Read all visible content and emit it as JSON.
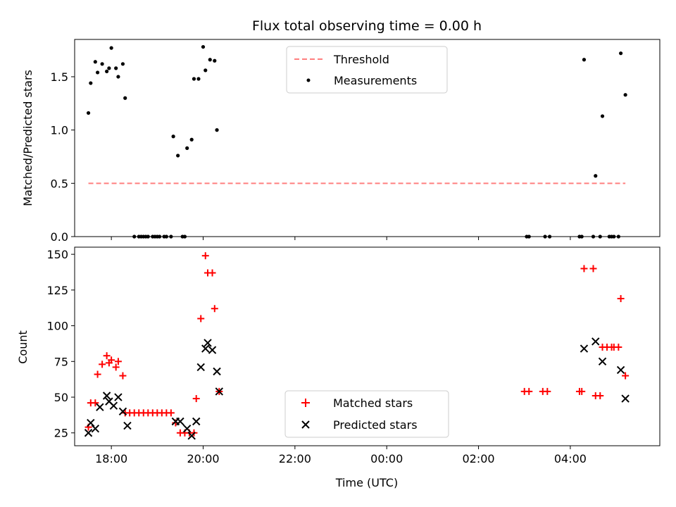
{
  "chart_data": {
    "title": "Flux total observing time = 0.00 h",
    "xlabel": "Time (UTC)",
    "x_unit": "hours since 00:00 UTC",
    "xlim": [
      -6.8,
      5.95
    ],
    "xticks": [
      {
        "value": -6,
        "label": "18:00"
      },
      {
        "value": -4,
        "label": "20:00"
      },
      {
        "value": -2,
        "label": "22:00"
      },
      {
        "value": 0,
        "label": "00:00"
      },
      {
        "value": 2,
        "label": "02:00"
      },
      {
        "value": 4,
        "label": "04:00"
      }
    ],
    "top": {
      "type": "scatter",
      "ylabel": "Matched/Predicted stars",
      "ylim": [
        0,
        1.85
      ],
      "yticks": [
        {
          "value": 0,
          "label": "0.0"
        },
        {
          "value": 0.5,
          "label": "0.5"
        },
        {
          "value": 1.0,
          "label": "1.0"
        },
        {
          "value": 1.5,
          "label": "1.5"
        }
      ],
      "legend": {
        "position": "upper-center",
        "entries": [
          {
            "name": "Threshold",
            "style": "dashed-line",
            "color": "#ff7f7f"
          },
          {
            "name": "Measurements",
            "style": "dot",
            "color": "#000000"
          }
        ]
      },
      "threshold": {
        "name": "Threshold",
        "x": [
          -6.5,
          5.2
        ],
        "y": 0.5,
        "color": "#ff7f7f"
      },
      "measurements": {
        "name": "Measurements",
        "color": "#000000",
        "points": [
          [
            -6.5,
            1.16
          ],
          [
            -6.45,
            1.44
          ],
          [
            -6.35,
            1.64
          ],
          [
            -6.3,
            1.54
          ],
          [
            -6.2,
            1.62
          ],
          [
            -6.1,
            1.55
          ],
          [
            -6.05,
            1.58
          ],
          [
            -6.0,
            1.77
          ],
          [
            -5.9,
            1.58
          ],
          [
            -5.85,
            1.5
          ],
          [
            -5.75,
            1.62
          ],
          [
            -5.7,
            1.3
          ],
          [
            -5.5,
            0
          ],
          [
            -5.4,
            0
          ],
          [
            -5.35,
            0
          ],
          [
            -5.3,
            0
          ],
          [
            -5.25,
            0
          ],
          [
            -5.2,
            0
          ],
          [
            -5.1,
            0
          ],
          [
            -5.05,
            0
          ],
          [
            -5.0,
            0
          ],
          [
            -4.95,
            0
          ],
          [
            -4.85,
            0
          ],
          [
            -4.8,
            0
          ],
          [
            -4.7,
            0
          ],
          [
            -4.65,
            0.94
          ],
          [
            -4.55,
            0.76
          ],
          [
            -4.45,
            0
          ],
          [
            -4.4,
            0
          ],
          [
            -4.35,
            0.83
          ],
          [
            -4.25,
            0.91
          ],
          [
            -4.2,
            1.48
          ],
          [
            -4.1,
            1.48
          ],
          [
            -4.0,
            1.78
          ],
          [
            -3.95,
            1.56
          ],
          [
            -3.85,
            1.66
          ],
          [
            -3.75,
            1.65
          ],
          [
            -3.7,
            1.0
          ],
          [
            3.05,
            0
          ],
          [
            3.1,
            0
          ],
          [
            3.45,
            0
          ],
          [
            3.55,
            0
          ],
          [
            4.2,
            0
          ],
          [
            4.25,
            0
          ],
          [
            4.3,
            1.66
          ],
          [
            4.5,
            0
          ],
          [
            4.55,
            0.57
          ],
          [
            4.65,
            0
          ],
          [
            4.7,
            1.13
          ],
          [
            4.85,
            0
          ],
          [
            4.9,
            0
          ],
          [
            4.95,
            0
          ],
          [
            5.05,
            0
          ],
          [
            5.1,
            1.72
          ],
          [
            5.2,
            1.33
          ]
        ]
      }
    },
    "bottom": {
      "type": "scatter",
      "ylabel": "Count",
      "ylim": [
        16,
        155
      ],
      "yticks": [
        {
          "value": 25,
          "label": "25"
        },
        {
          "value": 50,
          "label": "50"
        },
        {
          "value": 75,
          "label": "75"
        },
        {
          "value": 100,
          "label": "100"
        },
        {
          "value": 125,
          "label": "125"
        },
        {
          "value": 150,
          "label": "150"
        }
      ],
      "legend": {
        "position": "lower-center",
        "entries": [
          {
            "name": "Matched stars",
            "style": "plus",
            "color": "#ff0000"
          },
          {
            "name": "Predicted stars",
            "style": "x",
            "color": "#000000"
          }
        ]
      },
      "series": [
        {
          "name": "Matched stars",
          "marker": "plus",
          "color": "#ff0000",
          "points": [
            [
              -6.5,
              29
            ],
            [
              -6.45,
              46
            ],
            [
              -6.35,
              46
            ],
            [
              -6.3,
              66
            ],
            [
              -6.2,
              73
            ],
            [
              -6.1,
              79
            ],
            [
              -6.05,
              74
            ],
            [
              -6.0,
              76
            ],
            [
              -5.9,
              71
            ],
            [
              -5.85,
              75
            ],
            [
              -5.75,
              65
            ],
            [
              -5.7,
              39
            ],
            [
              -5.6,
              39
            ],
            [
              -5.5,
              39
            ],
            [
              -5.4,
              39
            ],
            [
              -5.3,
              39
            ],
            [
              -5.2,
              39
            ],
            [
              -5.1,
              39
            ],
            [
              -5.0,
              39
            ],
            [
              -4.9,
              39
            ],
            [
              -4.8,
              39
            ],
            [
              -4.7,
              39
            ],
            [
              -4.6,
              32
            ],
            [
              -4.5,
              25
            ],
            [
              -4.4,
              25
            ],
            [
              -4.3,
              25
            ],
            [
              -4.2,
              25
            ],
            [
              -4.15,
              49
            ],
            [
              -4.05,
              105
            ],
            [
              -3.95,
              149
            ],
            [
              -3.9,
              137
            ],
            [
              -3.8,
              137
            ],
            [
              -3.75,
              112
            ],
            [
              -3.65,
              54
            ],
            [
              3.0,
              54
            ],
            [
              3.1,
              54
            ],
            [
              3.4,
              54
            ],
            [
              3.5,
              54
            ],
            [
              4.2,
              54
            ],
            [
              4.25,
              54
            ],
            [
              4.3,
              140
            ],
            [
              4.5,
              140
            ],
            [
              4.55,
              51
            ],
            [
              4.65,
              51
            ],
            [
              4.7,
              85
            ],
            [
              4.8,
              85
            ],
            [
              4.9,
              85
            ],
            [
              4.95,
              85
            ],
            [
              5.05,
              85
            ],
            [
              5.1,
              119
            ],
            [
              5.2,
              65
            ]
          ]
        },
        {
          "name": "Predicted stars",
          "marker": "x",
          "color": "#000000",
          "points": [
            [
              -6.5,
              25
            ],
            [
              -6.45,
              32
            ],
            [
              -6.35,
              28
            ],
            [
              -6.25,
              43
            ],
            [
              -6.1,
              51
            ],
            [
              -6.05,
              47
            ],
            [
              -5.95,
              44
            ],
            [
              -5.85,
              50
            ],
            [
              -5.75,
              40
            ],
            [
              -5.65,
              30
            ],
            [
              -4.6,
              33
            ],
            [
              -4.5,
              33
            ],
            [
              -4.35,
              28
            ],
            [
              -4.25,
              23
            ],
            [
              -4.15,
              33
            ],
            [
              -4.05,
              71
            ],
            [
              -3.95,
              84
            ],
            [
              -3.9,
              88
            ],
            [
              -3.8,
              83
            ],
            [
              -3.7,
              68
            ],
            [
              -3.65,
              54
            ],
            [
              4.3,
              84
            ],
            [
              4.55,
              89
            ],
            [
              4.7,
              75
            ],
            [
              5.1,
              69
            ],
            [
              5.2,
              49
            ]
          ]
        }
      ]
    }
  }
}
